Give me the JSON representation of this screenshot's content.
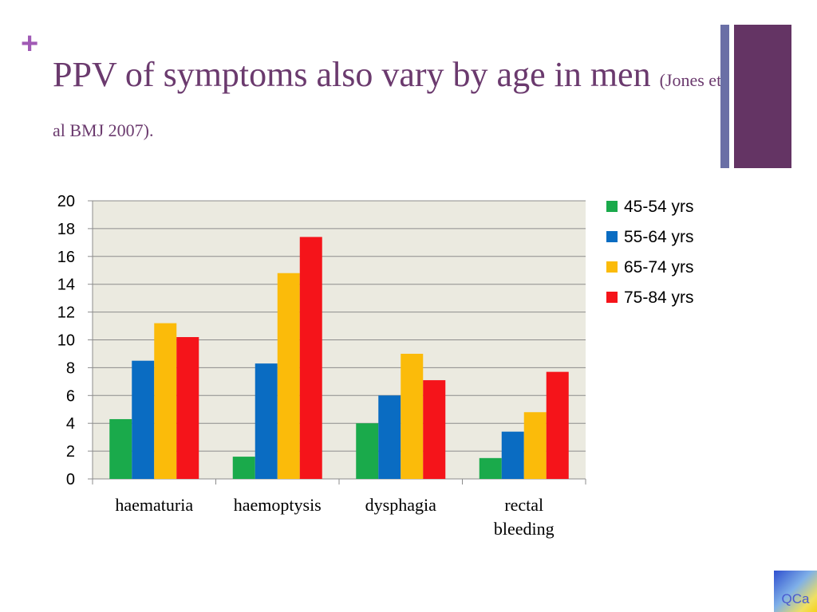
{
  "slide": {
    "plus": "+",
    "title_main": "PPV of symptoms also vary by age in men",
    "title_citation": "(Jones et al BMJ 2007).",
    "logo_text": "QCa"
  },
  "colors": {
    "title": "#6b3a6e",
    "plus": "#a05ab5",
    "deco_thin": "#6a6fa6",
    "deco_thick": "#643464",
    "plot_bg": "#ebeae0",
    "grid": "#8c8c8c",
    "logo_text": "#4a5ad0"
  },
  "chart_data": {
    "type": "bar",
    "categories": [
      "haematuria",
      "haemoptysis",
      "dysphagia",
      "rectal bleeding"
    ],
    "category_lines": [
      [
        "haematuria"
      ],
      [
        "haemoptysis"
      ],
      [
        "dysphagia"
      ],
      [
        "rectal",
        "bleeding"
      ]
    ],
    "series": [
      {
        "name": "45-54 yrs",
        "color": "#1aaa4b",
        "values": [
          4.3,
          1.6,
          4.0,
          1.5
        ]
      },
      {
        "name": "55-64 yrs",
        "color": "#0a6cc2",
        "values": [
          8.5,
          8.3,
          6.0,
          3.4
        ]
      },
      {
        "name": "65-74 yrs",
        "color": "#fbbb0a",
        "values": [
          11.2,
          14.8,
          9.0,
          4.8
        ]
      },
      {
        "name": "75-84 yrs",
        "color": "#f5141a",
        "values": [
          10.2,
          17.4,
          7.1,
          7.7
        ]
      }
    ],
    "ylim": [
      0,
      20
    ],
    "yticks": [
      0,
      2,
      4,
      6,
      8,
      10,
      12,
      14,
      16,
      18,
      20
    ],
    "grid": true,
    "legend": "right"
  }
}
